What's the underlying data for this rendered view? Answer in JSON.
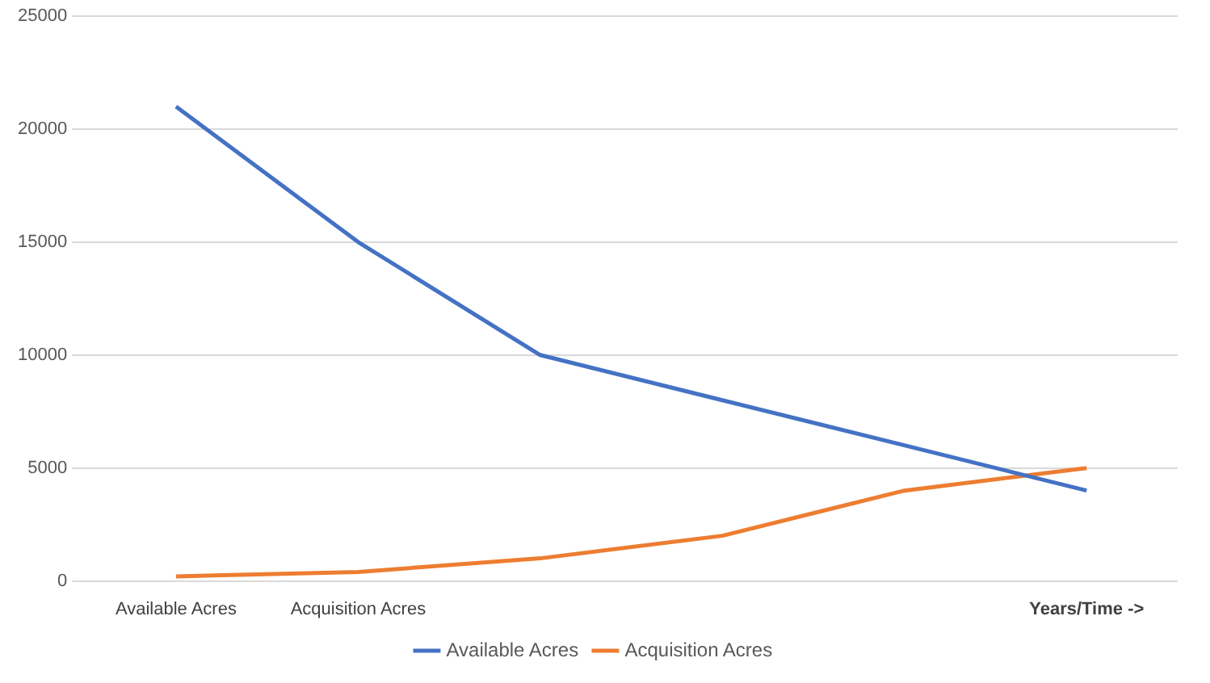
{
  "chart_data": {
    "type": "line",
    "categories": [
      "Available Acres",
      "Acquisition Acres",
      null,
      null,
      null,
      "Years/Time ->"
    ],
    "series": [
      {
        "name": "Available Acres",
        "color": "#4472c4",
        "values": [
          21000,
          15000,
          10000,
          8000,
          6000,
          4000
        ]
      },
      {
        "name": "Acquisition Acres",
        "color": "#ed7d31",
        "values": [
          200,
          400,
          1000,
          2000,
          4000,
          5000
        ]
      }
    ],
    "ylim": [
      0,
      25000
    ],
    "yticks": [
      0,
      5000,
      10000,
      15000,
      20000,
      25000
    ],
    "grid": "y",
    "legend": "bottom",
    "marker": "none",
    "line_style": "solid"
  }
}
